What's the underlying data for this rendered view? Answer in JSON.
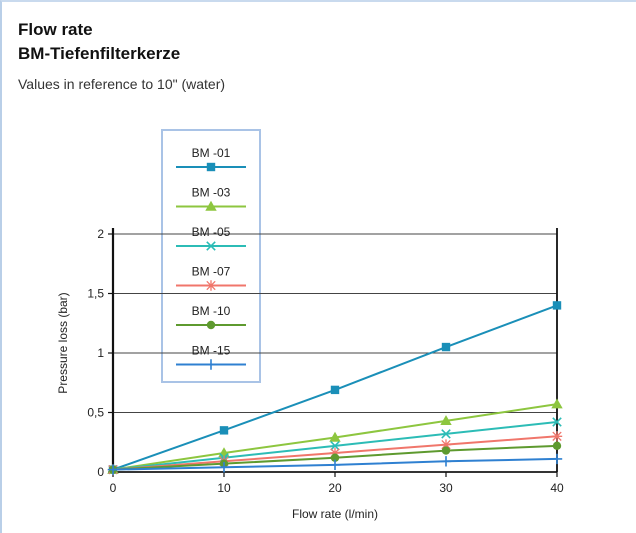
{
  "header": {
    "title": "Flow rate",
    "subtitle": "BM-Tiefenfilterkerze",
    "caption": "Values in reference to 10\" (water)"
  },
  "chart_data": {
    "type": "line",
    "title": "Flow rate",
    "subtitle": "BM-Tiefenfilterkerze",
    "note": "Values in reference to 10\" (water)",
    "xlabel": "Flow rate (l/min)",
    "ylabel": "Pressure loss (bar)",
    "x": [
      0,
      10,
      20,
      30,
      40
    ],
    "xlim": [
      0,
      40
    ],
    "ylim": [
      0,
      2
    ],
    "xticks": [
      "0",
      "10",
      "20",
      "30",
      "40"
    ],
    "yticks": [
      "0",
      "0,5",
      "1",
      "1,5",
      "2"
    ],
    "grid": "horizontal",
    "legend_position": "top-left",
    "series": [
      {
        "name": "BM -01",
        "values": [
          0.02,
          0.35,
          0.69,
          1.05,
          1.4
        ],
        "color": "#1a8fb8",
        "marker": "square"
      },
      {
        "name": "BM -03",
        "values": [
          0.02,
          0.16,
          0.29,
          0.43,
          0.57
        ],
        "color": "#8dc63f",
        "marker": "triangle"
      },
      {
        "name": "BM -05",
        "values": [
          0.02,
          0.12,
          0.22,
          0.32,
          0.42
        ],
        "color": "#2cbcb6",
        "marker": "x"
      },
      {
        "name": "BM -07",
        "values": [
          0.02,
          0.09,
          0.16,
          0.23,
          0.3
        ],
        "color": "#f0766b",
        "marker": "star"
      },
      {
        "name": "BM -10",
        "values": [
          0.02,
          0.07,
          0.12,
          0.18,
          0.22
        ],
        "color": "#5e9a2f",
        "marker": "circle"
      },
      {
        "name": "BM -15",
        "values": [
          0.02,
          0.04,
          0.06,
          0.09,
          0.11
        ],
        "color": "#2f80d1",
        "marker": "plus"
      }
    ]
  }
}
